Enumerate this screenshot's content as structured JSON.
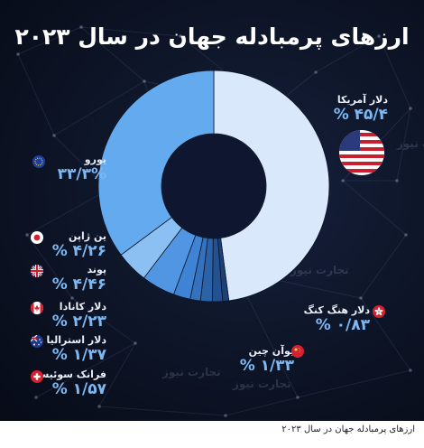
{
  "title": "ارزهای پرمبادله جهان در سال ۲۰۲۳",
  "caption": "ارزهای پرمبادله جهان در سال ۲۰۲۳",
  "watermark": "تجارت نیوز",
  "chart_data": {
    "type": "pie",
    "title": "ارزهای پرمبادله جهان در سال ۲۰۲۳",
    "unit": "%",
    "slices": [
      {
        "name": "دلار آمریکا",
        "value_label": "۴۵/۴ %",
        "value": 45.4,
        "color": "#d9e8fb",
        "flag": "us-flag-icon"
      },
      {
        "name": "یورو",
        "value_label": "۳۳/۳%",
        "value": 33.3,
        "color": "#63aaef",
        "flag": "eu-flag-icon"
      },
      {
        "name": "ین ژاپن",
        "value_label": "۴/۲۶ %",
        "value": 4.26,
        "color": "#8cc0f3",
        "flag": "jp-flag-icon"
      },
      {
        "name": "پوند",
        "value_label": "۴/۴۶ %",
        "value": 4.46,
        "color": "#5096e2",
        "flag": "uk-flag-icon"
      },
      {
        "name": "دلار کانادا",
        "value_label": "۲/۲۳ %",
        "value": 2.23,
        "color": "#3f84d4",
        "flag": "ca-flag-icon"
      },
      {
        "name": "دلار استرالیا",
        "value_label": "۱/۳۷ %",
        "value": 1.37,
        "color": "#3572bd",
        "flag": "au-flag-icon"
      },
      {
        "name": "فرانک سوئیس",
        "value_label": "۱/۵۷ %",
        "value": 1.57,
        "color": "#2c62a6",
        "flag": "ch-flag-icon"
      },
      {
        "name": "یوآن چین",
        "value_label": "۱/۳۳ %",
        "value": 1.33,
        "color": "#24518f",
        "flag": "cn-flag-icon"
      },
      {
        "name": "دلار هنگ کنگ",
        "value_label": "۰/۸۳ %",
        "value": 0.83,
        "color": "#1c4078",
        "flag": "hk-flag-icon"
      }
    ]
  }
}
